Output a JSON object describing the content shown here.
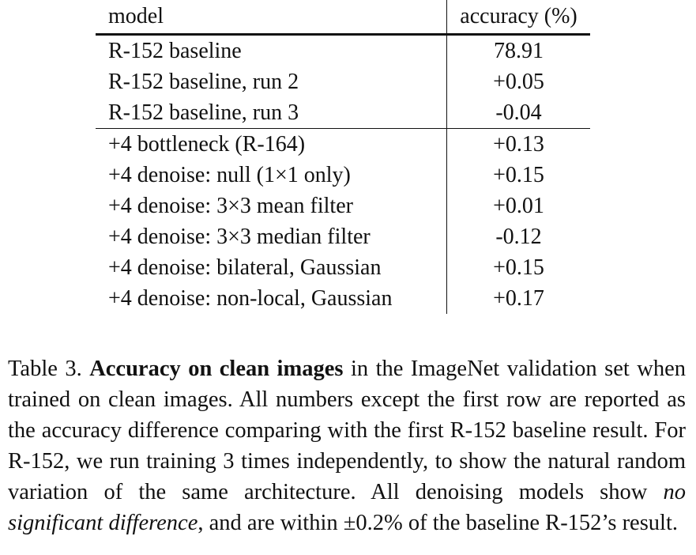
{
  "table": {
    "headers": {
      "model": "model",
      "accuracy": "accuracy (%)"
    },
    "rows": [
      {
        "model": "R-152 baseline",
        "accuracy": "78.91"
      },
      {
        "model": "R-152 baseline, run 2",
        "accuracy": "+0.05"
      },
      {
        "model": "R-152 baseline, run 3",
        "accuracy": "-0.04"
      },
      {
        "model": "+4 bottleneck (R-164)",
        "accuracy": "+0.13"
      },
      {
        "model": "+4 denoise: null (1×1 only)",
        "accuracy": "+0.15"
      },
      {
        "model": "+4 denoise: 3×3 mean filter",
        "accuracy": "+0.01"
      },
      {
        "model": "+4 denoise: 3×3 median filter",
        "accuracy": "-0.12"
      },
      {
        "model": "+4 denoise: bilateral, Gaussian",
        "accuracy": "+0.15"
      },
      {
        "model": "+4 denoise: non-local, Gaussian",
        "accuracy": "+0.17"
      }
    ]
  },
  "caption": {
    "label": "Table 3. ",
    "title": "Accuracy on clean images",
    "text1": " in the ImageNet validation set when trained on clean images. All numbers except the first row are reported as the accuracy difference comparing with the first R-152 baseline result. For R-152, we run training 3 times independently, to show the natural random variation of the same architecture. All denoising models show ",
    "emph": "no significant difference",
    "text2": ", and are within ±0.2% of the baseline R-152’s result."
  }
}
